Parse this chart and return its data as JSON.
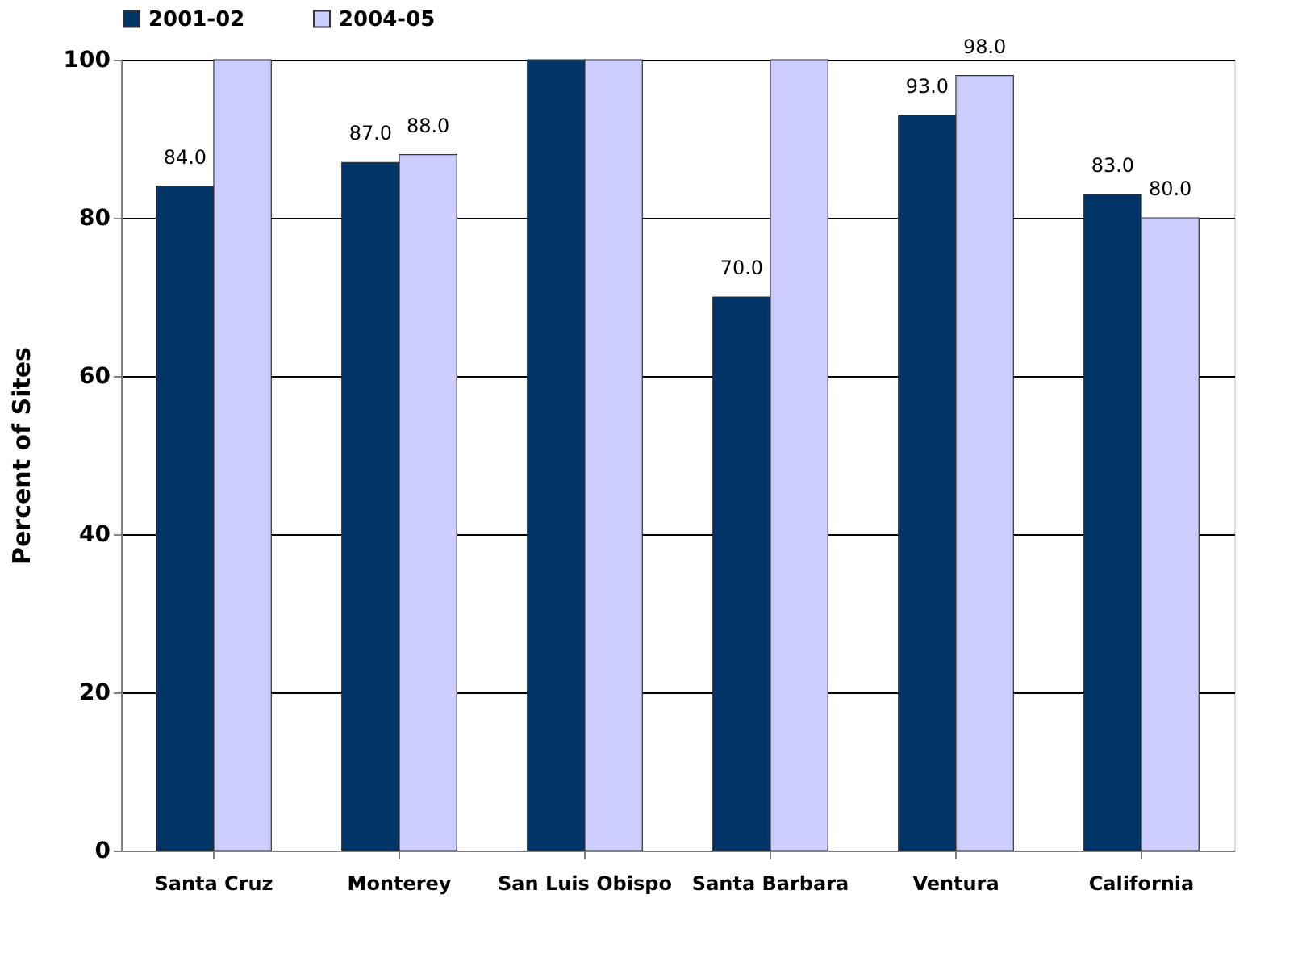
{
  "chart_data": {
    "type": "bar",
    "ylabel": "Percent of Sites",
    "categories": [
      "Santa Cruz",
      "Monterey",
      "San Luis Obispo",
      "Santa Barbara",
      "Ventura",
      "California"
    ],
    "series": [
      {
        "name": "2001-02",
        "color": "#003366",
        "values": [
          84,
          87,
          100,
          70,
          93,
          83
        ],
        "value_labels": [
          "84.0",
          "87.0",
          null,
          "70.0",
          "93.0",
          "83.0"
        ]
      },
      {
        "name": "2004-05",
        "color": "#ccccff",
        "values": [
          100,
          88,
          100,
          100,
          98,
          80
        ],
        "value_labels": [
          null,
          "88.0",
          null,
          null,
          "98.0",
          "80.0"
        ]
      }
    ],
    "ylim": [
      0,
      100
    ],
    "yticks": [
      0,
      20,
      40,
      60,
      80,
      100
    ],
    "grid": "y",
    "legend": "top"
  }
}
